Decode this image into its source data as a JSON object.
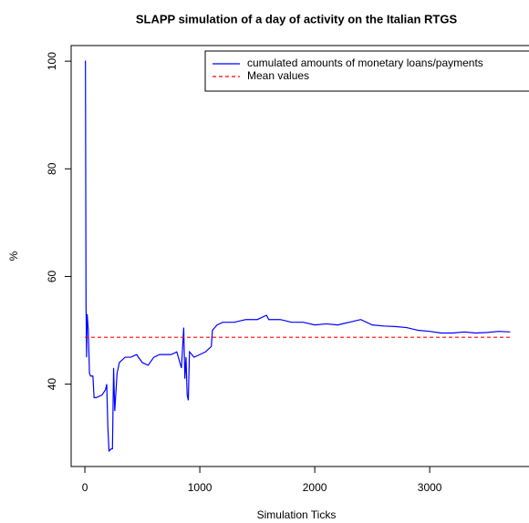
{
  "chart_data": {
    "type": "line",
    "title": "SLAPP simulation of a day of activity on the Italian RTGS",
    "xlabel": "Simulation Ticks",
    "ylabel": "%",
    "x": [
      0,
      5,
      10,
      15,
      20,
      30,
      40,
      50,
      70,
      80,
      100,
      150,
      180,
      190,
      200,
      210,
      230,
      240,
      250,
      260,
      280,
      300,
      350,
      400,
      450,
      500,
      550,
      600,
      650,
      700,
      750,
      800,
      840,
      860,
      870,
      880,
      890,
      900,
      910,
      950,
      1000,
      1050,
      1100,
      1110,
      1150,
      1200,
      1300,
      1400,
      1500,
      1580,
      1600,
      1700,
      1800,
      1900,
      2000,
      2100,
      2200,
      2300,
      2400,
      2500,
      2600,
      2700,
      2800,
      2900,
      3000,
      3100,
      3200,
      3300,
      3400,
      3500,
      3600,
      3700
    ],
    "series": [
      {
        "name": "cumulated amounts of monetary loans/payments",
        "color": "#0000ff",
        "linestyle": "solid",
        "values": [
          100,
          100,
          55,
          45,
          53,
          50,
          42,
          41.5,
          41.5,
          37.5,
          37.5,
          38,
          39,
          40,
          32,
          27.6,
          28,
          28,
          43,
          35,
          42,
          44,
          45,
          45,
          45.5,
          44,
          43.5,
          45,
          45.5,
          45.5,
          45.5,
          46,
          43,
          50.5,
          41,
          45,
          38,
          37,
          46,
          45,
          45.5,
          46,
          47,
          50,
          51,
          51.5,
          51.5,
          52,
          52,
          52.8,
          52,
          52,
          51.5,
          51.5,
          51,
          51.2,
          51,
          51.5,
          52,
          51,
          50.8,
          50.7,
          50.5,
          50,
          49.8,
          49.5,
          49.5,
          49.7,
          49.5,
          49.6,
          49.8,
          49.7
        ]
      },
      {
        "name": "Mean values",
        "color": "#ff0000",
        "linestyle": "dashed",
        "x": [
          0,
          3700
        ],
        "values": [
          48.7,
          48.7
        ]
      }
    ],
    "xlim": [
      -148,
      3848
    ],
    "ylim": [
      24.7,
      102.9
    ],
    "xticks": [
      0,
      1000,
      2000,
      3000
    ],
    "yticks": [
      40,
      60,
      80,
      100
    ],
    "legend": "top-right"
  }
}
